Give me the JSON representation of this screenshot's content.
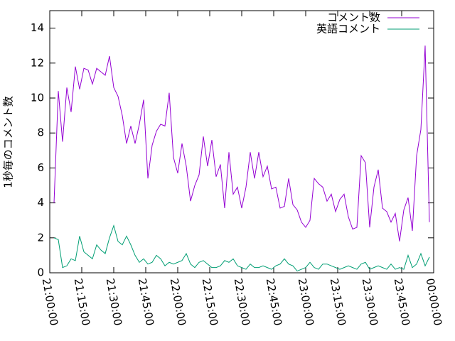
{
  "chart_data": {
    "type": "line",
    "ylabel": "1秒毎のコメント数",
    "x": [
      "21:02:00",
      "21:04:00",
      "21:06:00",
      "21:08:00",
      "21:10:00",
      "21:12:00",
      "21:14:00",
      "21:16:00",
      "21:18:00",
      "21:20:00",
      "21:22:00",
      "21:24:00",
      "21:26:00",
      "21:28:00",
      "21:30:00",
      "21:32:00",
      "21:34:00",
      "21:36:00",
      "21:38:00",
      "21:40:00",
      "21:42:00",
      "21:44:00",
      "21:46:00",
      "21:48:00",
      "21:50:00",
      "21:52:00",
      "21:54:00",
      "21:56:00",
      "21:58:00",
      "22:00:00",
      "22:02:00",
      "22:04:00",
      "22:06:00",
      "22:08:00",
      "22:10:00",
      "22:12:00",
      "22:14:00",
      "22:16:00",
      "22:18:00",
      "22:20:00",
      "22:22:00",
      "22:24:00",
      "22:26:00",
      "22:28:00",
      "22:30:00",
      "22:32:00",
      "22:34:00",
      "22:36:00",
      "22:38:00",
      "22:40:00",
      "22:42:00",
      "22:44:00",
      "22:46:00",
      "22:48:00",
      "22:50:00",
      "22:52:00",
      "22:54:00",
      "22:56:00",
      "22:58:00",
      "23:00:00",
      "23:02:00",
      "23:04:00",
      "23:06:00",
      "23:08:00",
      "23:10:00",
      "23:12:00",
      "23:14:00",
      "23:16:00",
      "23:18:00",
      "23:20:00",
      "23:22:00",
      "23:24:00",
      "23:26:00",
      "23:28:00",
      "23:30:00",
      "23:32:00",
      "23:34:00",
      "23:36:00",
      "23:38:00",
      "23:40:00",
      "23:42:00",
      "23:44:00",
      "23:46:00",
      "23:48:00",
      "23:50:00",
      "23:52:00",
      "23:54:00",
      "23:56:00",
      "23:58:00"
    ],
    "series": [
      {
        "name": "コメント数",
        "color": "#9400d3",
        "values": [
          4.0,
          10.4,
          7.5,
          10.6,
          9.2,
          11.8,
          10.5,
          11.7,
          11.6,
          10.8,
          11.7,
          11.5,
          11.3,
          12.4,
          10.6,
          10.1,
          9.0,
          7.4,
          8.4,
          7.4,
          8.5,
          9.9,
          5.4,
          7.3,
          8.1,
          8.5,
          8.4,
          10.3,
          6.6,
          5.7,
          7.4,
          6.1,
          4.1,
          5.0,
          5.6,
          7.8,
          6.1,
          7.6,
          5.5,
          6.2,
          3.7,
          6.9,
          4.5,
          4.9,
          3.7,
          4.9,
          6.9,
          5.4,
          6.9,
          5.5,
          6.1,
          4.8,
          4.9,
          3.7,
          3.8,
          5.4,
          3.9,
          3.6,
          2.9,
          2.6,
          3.0,
          5.4,
          5.1,
          4.9,
          4.1,
          4.5,
          3.5,
          4.2,
          4.5,
          3.2,
          2.5,
          2.6,
          6.7,
          6.3,
          2.6,
          4.9,
          5.9,
          3.7,
          3.5,
          2.9,
          3.4,
          1.8,
          3.6,
          4.3,
          2.4,
          6.7,
          8.2,
          13.0,
          2.9
        ]
      },
      {
        "name": "英語コメント",
        "color": "#009e73",
        "values": [
          2.0,
          1.9,
          0.3,
          0.4,
          0.8,
          0.7,
          2.1,
          1.2,
          1.0,
          0.8,
          1.6,
          1.3,
          1.1,
          2.0,
          2.7,
          1.8,
          1.6,
          2.1,
          1.6,
          1.0,
          0.6,
          0.8,
          0.5,
          0.6,
          1.0,
          0.8,
          0.4,
          0.6,
          0.5,
          0.6,
          0.7,
          1.1,
          0.5,
          0.3,
          0.6,
          0.7,
          0.5,
          0.3,
          0.3,
          0.4,
          0.7,
          0.6,
          0.8,
          0.4,
          0.3,
          0.2,
          0.5,
          0.3,
          0.3,
          0.4,
          0.3,
          0.2,
          0.4,
          0.5,
          0.8,
          0.5,
          0.4,
          0.1,
          0.2,
          0.3,
          0.6,
          0.3,
          0.2,
          0.5,
          0.5,
          0.4,
          0.3,
          0.2,
          0.3,
          0.4,
          0.3,
          0.2,
          0.5,
          0.6,
          0.2,
          0.3,
          0.4,
          0.3,
          0.2,
          0.5,
          0.2,
          0.3,
          0.2,
          1.0,
          0.3,
          0.5,
          1.1,
          0.4,
          0.9
        ]
      }
    ],
    "xlim": [
      "21:00:00",
      "00:00:00"
    ],
    "xticks": [
      "21:00:00",
      "21:15:00",
      "21:30:00",
      "21:45:00",
      "22:00:00",
      "22:15:00",
      "22:30:00",
      "22:45:00",
      "23:00:00",
      "23:15:00",
      "23:30:00",
      "23:45:00",
      "00:00:00"
    ],
    "ylim": [
      0,
      15
    ],
    "yticks": [
      0,
      2,
      4,
      6,
      8,
      10,
      12,
      14
    ],
    "legend": "upper right"
  }
}
